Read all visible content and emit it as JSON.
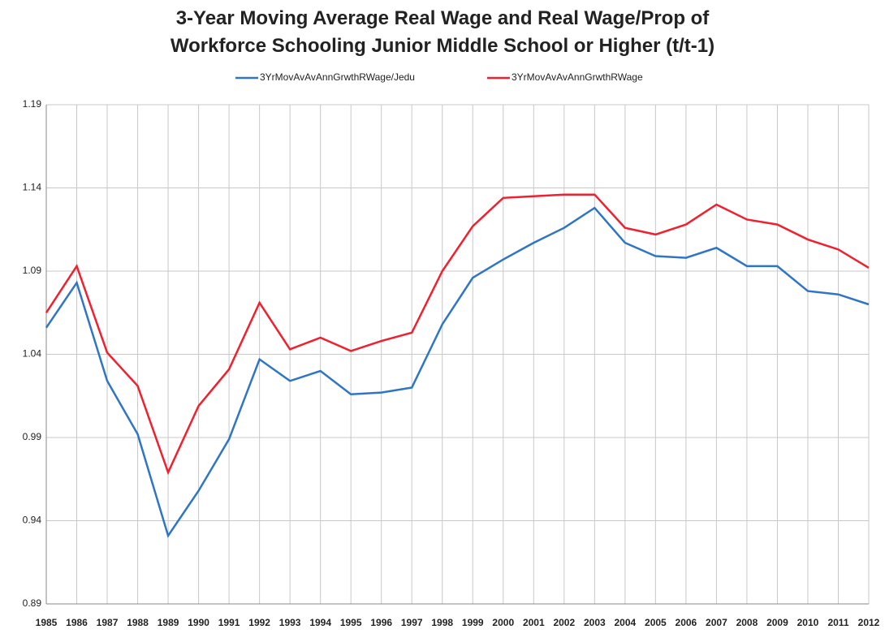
{
  "chart_data": {
    "type": "line",
    "title": "3-Year Moving Average Real Wage and Real Wage/Prop of Workforce Schooling Junior Middle School or Higher (t/t-1)",
    "categories": [
      "1985",
      "1986",
      "1987",
      "1988",
      "1989",
      "1990",
      "1991",
      "1992",
      "1993",
      "1994",
      "1995",
      "1996",
      "1997",
      "1998",
      "1999",
      "2000",
      "2001",
      "2002",
      "2003",
      "2004",
      "2005",
      "2006",
      "2007",
      "2008",
      "2009",
      "2010",
      "2011",
      "2012"
    ],
    "series": [
      {
        "name": "3YrMovAvAvAnnGrwthRWage/Jedu",
        "color": "#2e75c6",
        "values": [
          1.056,
          1.083,
          1.024,
          0.992,
          0.931,
          0.958,
          0.989,
          1.037,
          1.024,
          1.03,
          1.016,
          1.017,
          1.02,
          1.058,
          1.086,
          1.097,
          1.107,
          1.116,
          1.128,
          1.107,
          1.099,
          1.098,
          1.104,
          1.093,
          1.093,
          1.078,
          1.076,
          1.07
        ]
      },
      {
        "name": "3YrMovAvAvAnnGrwthRWage",
        "color": "#f0202e",
        "values": [
          1.065,
          1.093,
          1.041,
          1.021,
          0.969,
          1.009,
          1.031,
          1.071,
          1.043,
          1.05,
          1.042,
          1.048,
          1.053,
          1.09,
          1.117,
          1.134,
          1.135,
          1.136,
          1.136,
          1.116,
          1.112,
          1.118,
          1.13,
          1.121,
          1.118,
          1.109,
          1.103,
          1.092
        ]
      }
    ],
    "ylim": [
      0.89,
      1.19
    ],
    "yticks": [
      0.89,
      0.94,
      0.99,
      1.04,
      1.09,
      1.14,
      1.19
    ],
    "grid": true,
    "legend": "top"
  }
}
